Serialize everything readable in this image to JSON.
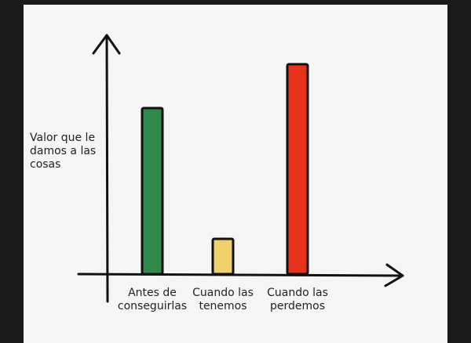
{
  "chart_data": {
    "type": "bar",
    "y_label": "Valor que le damos a las cosas",
    "categories": [
      "Antes de conseguirlas",
      "Cuando las tenemos",
      "Cuando las perdemos"
    ],
    "values": [
      212,
      45,
      268
    ],
    "colors": [
      "#2f8a4c",
      "#efd06a",
      "#e8321e"
    ],
    "ylim": [
      0,
      300
    ]
  }
}
